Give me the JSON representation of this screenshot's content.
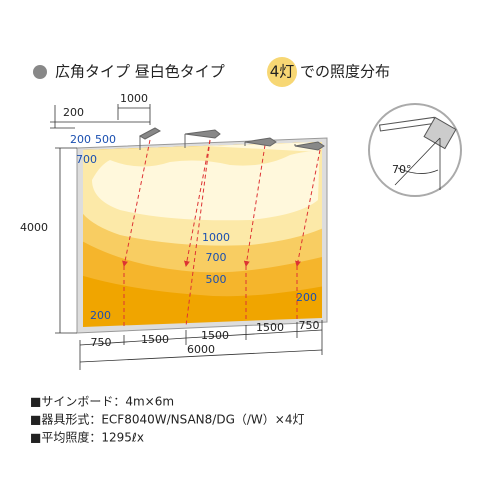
{
  "header": {
    "title_before": "広角タイプ 昼白色タイプ",
    "badge": "4灯",
    "title_after": "での照度分布"
  },
  "dimensions": {
    "top_offset": "200",
    "fixture_spacing": "1000",
    "height": "4000",
    "bottom": [
      "750",
      "1500",
      "1500",
      "1500",
      "750"
    ],
    "total_width": "6000"
  },
  "isolux_labels": {
    "top_left_200": "200",
    "top_left_500": "500",
    "top_left_700": "700",
    "center_1000": "1000",
    "center_700": "700",
    "center_500": "500",
    "bottom_right_200": "200",
    "bottom_left_200": "200"
  },
  "inset": {
    "angle": "70°"
  },
  "specs": [
    "■サインボード：4m×6m",
    "■器具形式：ECF8040W/NSAN8/DG（/W）×4灯",
    "■平均照度：1295ℓx"
  ]
}
